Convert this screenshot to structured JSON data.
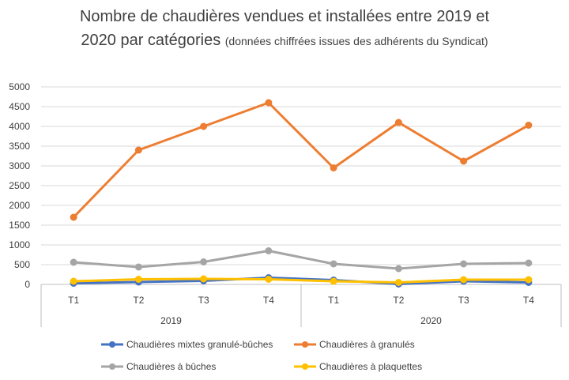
{
  "title_line1": "Nombre de chaudières vendues et installées entre 2019 et",
  "title_line2_main": "2020 par catégories",
  "title_line2_sub": "(données chiffrées issues des adhérents du Syndicat)",
  "chart_data": {
    "type": "line",
    "title": "Nombre de chaudières vendues et installées entre 2019 et 2020 par catégories (données chiffrées issues des adhérents du Syndicat)",
    "categories": [
      "T1",
      "T2",
      "T3",
      "T4",
      "T1",
      "T2",
      "T3",
      "T4"
    ],
    "groups": [
      {
        "label": "2019",
        "count": 4
      },
      {
        "label": "2020",
        "count": 4
      }
    ],
    "ylim": [
      0,
      5000
    ],
    "yticks": [
      0,
      500,
      1000,
      1500,
      2000,
      2500,
      3000,
      3500,
      4000,
      4500,
      5000
    ],
    "grid": true,
    "legend": "bottom",
    "series": [
      {
        "name": "Chaudières mixtes granulé-bûches",
        "color": "#4472C4",
        "values": [
          30,
          60,
          90,
          170,
          110,
          10,
          80,
          50
        ]
      },
      {
        "name": "Chaudières à granulés",
        "color": "#ED7D31",
        "values": [
          1700,
          3400,
          4000,
          4600,
          2950,
          4100,
          3120,
          4030
        ]
      },
      {
        "name": "Chaudières à bûches",
        "color": "#A5A5A5",
        "values": [
          560,
          440,
          570,
          850,
          520,
          400,
          520,
          540
        ]
      },
      {
        "name": "Chaudières à plaquettes",
        "color": "#FFC000",
        "values": [
          80,
          130,
          140,
          130,
          80,
          50,
          120,
          120
        ]
      }
    ]
  }
}
